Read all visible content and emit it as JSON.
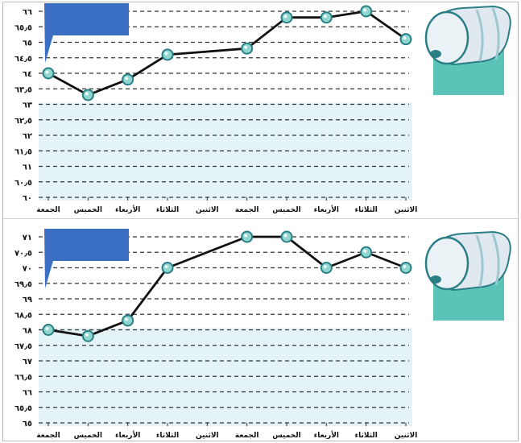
{
  "chart_data": [
    {
      "type": "line",
      "categories": [
        "الجمعة",
        "الخميس",
        "الأربعاء",
        "الثلاثاء",
        "الاثنين",
        "الجمعة",
        "الخميس",
        "الأربعاء",
        "الثلاثاء",
        "الاثنين"
      ],
      "values": [
        64,
        63.3,
        63.8,
        64.6,
        null,
        64.8,
        65.8,
        65.8,
        66,
        65.1
      ],
      "yticks": [
        "٦٦",
        "٦٥٫٥",
        "٦٥",
        "٦٤٫٥",
        "٦٤",
        "٦٣٫٥",
        "٦٣",
        "٦٢٫٥",
        "٦٢",
        "٦١٫٥",
        "٦١",
        "٦٠٫٥",
        "٦٠"
      ],
      "ylim": [
        60,
        66
      ],
      "grid": true,
      "title": "",
      "xlabel": "",
      "ylabel": ""
    },
    {
      "type": "line",
      "categories": [
        "الجمعة",
        "الخميس",
        "الأربعاء",
        "الثلاثاء",
        "الاثنين",
        "الجمعة",
        "الخميس",
        "الأربعاء",
        "الثلاثاء",
        "الاثنين"
      ],
      "values": [
        68,
        67.8,
        68.3,
        70,
        null,
        71,
        71,
        70,
        70.5,
        70
      ],
      "yticks": [
        "٧١",
        "٧٠٫٥",
        "٧٠",
        "٦٩٫٥",
        "٦٩",
        "٦٨٫٥",
        "٦٨",
        "٦٧٫٥",
        "٦٧",
        "٦٦٫٥",
        "٦٦",
        "٦٥٫٥",
        "٦٥"
      ],
      "ylim": [
        65,
        71
      ],
      "grid": true,
      "title": "",
      "xlabel": "",
      "ylabel": ""
    }
  ],
  "colors": {
    "line": "#111111",
    "marker_fill": "#8fd6cf",
    "marker_stroke": "#2a7f86",
    "band": "#e3f3f6",
    "flag": "#3a6fc4",
    "grid": "#333333"
  },
  "icons": [
    "oil-barrel-icon",
    "flag-callout-icon"
  ]
}
